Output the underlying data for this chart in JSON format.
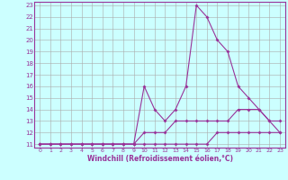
{
  "xlabel": "Windchill (Refroidissement éolien,°C)",
  "x": [
    0,
    1,
    2,
    3,
    4,
    5,
    6,
    7,
    8,
    9,
    10,
    11,
    12,
    13,
    14,
    15,
    16,
    17,
    18,
    19,
    20,
    21,
    22,
    23
  ],
  "line_min": [
    11,
    11,
    11,
    11,
    11,
    11,
    11,
    11,
    11,
    11,
    11,
    11,
    11,
    11,
    11,
    11,
    11,
    12,
    12,
    12,
    12,
    12,
    12,
    12
  ],
  "line_mean": [
    11,
    11,
    11,
    11,
    11,
    11,
    11,
    11,
    11,
    11,
    12,
    12,
    12,
    13,
    13,
    13,
    13,
    13,
    13,
    14,
    14,
    14,
    13,
    13
  ],
  "line_max": [
    11,
    11,
    11,
    11,
    11,
    11,
    11,
    11,
    11,
    11,
    16,
    14,
    13,
    14,
    16,
    23,
    22,
    20,
    19,
    16,
    15,
    14,
    13,
    12
  ],
  "ylim_min": 11,
  "ylim_max": 23,
  "xlim_min": 0,
  "xlim_max": 23,
  "yticks": [
    11,
    12,
    13,
    14,
    15,
    16,
    17,
    18,
    19,
    20,
    21,
    22,
    23
  ],
  "xticks": [
    0,
    1,
    2,
    3,
    4,
    5,
    6,
    7,
    8,
    9,
    10,
    11,
    12,
    13,
    14,
    15,
    16,
    17,
    18,
    19,
    20,
    21,
    22,
    23
  ],
  "line_color": "#993399",
  "bg_color": "#ccffff",
  "grid_color": "#aaaaaa",
  "marker": "D",
  "marker_size": 2.0,
  "linewidth": 0.8
}
